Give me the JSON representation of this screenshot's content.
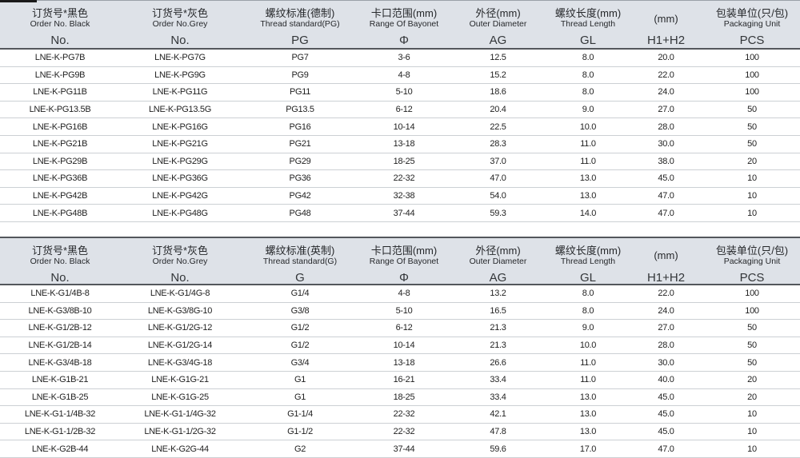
{
  "tables": [
    {
      "name": "pg-thread-table",
      "columns": [
        {
          "slug": "order-no-black",
          "zh": "订货号*黑色",
          "en": "Order No. Black",
          "key": "No."
        },
        {
          "slug": "order-no-grey",
          "zh": "订货号*灰色",
          "en": "Order No.Grey",
          "key": "No."
        },
        {
          "slug": "thread-standard",
          "zh": "螺纹标准(德制)",
          "en": "Thread standard(PG)",
          "key": "PG"
        },
        {
          "slug": "bayonet-range",
          "zh": "卡口范围(mm)",
          "en": "Range Of Bayonet",
          "key": "Φ"
        },
        {
          "slug": "outer-diameter",
          "zh": "外径(mm)",
          "en": "Outer Diameter",
          "key": "AG"
        },
        {
          "slug": "thread-length",
          "zh": "螺纹长度(mm)",
          "en": "Thread Length",
          "key": "GL"
        },
        {
          "slug": "h1h2",
          "zh": "(mm)",
          "en": "",
          "key": "H1+H2"
        },
        {
          "slug": "packaging-unit",
          "zh": "包装单位(只/包)",
          "en": "Packaging Unit",
          "key": "PCS"
        }
      ],
      "rows": [
        [
          "LNE-K-PG7B",
          "LNE-K-PG7G",
          "PG7",
          "3-6",
          "12.5",
          "8.0",
          "20.0",
          "100"
        ],
        [
          "LNE-K-PG9B",
          "LNE-K-PG9G",
          "PG9",
          "4-8",
          "15.2",
          "8.0",
          "22.0",
          "100"
        ],
        [
          "LNE-K-PG11B",
          "LNE-K-PG11G",
          "PG11",
          "5-10",
          "18.6",
          "8.0",
          "24.0",
          "100"
        ],
        [
          "LNE-K-PG13.5B",
          "LNE-K-PG13.5G",
          "PG13.5",
          "6-12",
          "20.4",
          "9.0",
          "27.0",
          "50"
        ],
        [
          "LNE-K-PG16B",
          "LNE-K-PG16G",
          "PG16",
          "10-14",
          "22.5",
          "10.0",
          "28.0",
          "50"
        ],
        [
          "LNE-K-PG21B",
          "LNE-K-PG21G",
          "PG21",
          "13-18",
          "28.3",
          "11.0",
          "30.0",
          "50"
        ],
        [
          "LNE-K-PG29B",
          "LNE-K-PG29G",
          "PG29",
          "18-25",
          "37.0",
          "11.0",
          "38.0",
          "20"
        ],
        [
          "LNE-K-PG36B",
          "LNE-K-PG36G",
          "PG36",
          "22-32",
          "47.0",
          "13.0",
          "45.0",
          "10"
        ],
        [
          "LNE-K-PG42B",
          "LNE-K-PG42G",
          "PG42",
          "32-38",
          "54.0",
          "13.0",
          "47.0",
          "10"
        ],
        [
          "LNE-K-PG48B",
          "LNE-K-PG48G",
          "PG48",
          "37-44",
          "59.3",
          "14.0",
          "47.0",
          "10"
        ]
      ]
    },
    {
      "name": "g-thread-table",
      "columns": [
        {
          "slug": "order-no-black",
          "zh": "订货号*黑色",
          "en": "Order No. Black",
          "key": "No."
        },
        {
          "slug": "order-no-grey",
          "zh": "订货号*灰色",
          "en": "Order No.Grey",
          "key": "No."
        },
        {
          "slug": "thread-standard",
          "zh": "螺纹标准(英制)",
          "en": "Thread standard(G)",
          "key": "G"
        },
        {
          "slug": "bayonet-range",
          "zh": "卡口范围(mm)",
          "en": "Range Of Bayonet",
          "key": "Φ"
        },
        {
          "slug": "outer-diameter",
          "zh": "外径(mm)",
          "en": "Outer Diameter",
          "key": "AG"
        },
        {
          "slug": "thread-length",
          "zh": "螺纹长度(mm)",
          "en": "Thread Length",
          "key": "GL"
        },
        {
          "slug": "h1h2",
          "zh": "(mm)",
          "en": "",
          "key": "H1+H2"
        },
        {
          "slug": "packaging-unit",
          "zh": "包装单位(只/包)",
          "en": "Packaging Unit",
          "key": "PCS"
        }
      ],
      "rows": [
        [
          "LNE-K-G1/4B-8",
          "LNE-K-G1/4G-8",
          "G1/4",
          "4-8",
          "13.2",
          "8.0",
          "22.0",
          "100"
        ],
        [
          "LNE-K-G3/8B-10",
          "LNE-K-G3/8G-10",
          "G3/8",
          "5-10",
          "16.5",
          "8.0",
          "24.0",
          "100"
        ],
        [
          "LNE-K-G1/2B-12",
          "LNE-K-G1/2G-12",
          "G1/2",
          "6-12",
          "21.3",
          "9.0",
          "27.0",
          "50"
        ],
        [
          "LNE-K-G1/2B-14",
          "LNE-K-G1/2G-14",
          "G1/2",
          "10-14",
          "21.3",
          "10.0",
          "28.0",
          "50"
        ],
        [
          "LNE-K-G3/4B-18",
          "LNE-K-G3/4G-18",
          "G3/4",
          "13-18",
          "26.6",
          "11.0",
          "30.0",
          "50"
        ],
        [
          "LNE-K-G1B-21",
          "LNE-K-G1G-21",
          "G1",
          "16-21",
          "33.4",
          "11.0",
          "40.0",
          "20"
        ],
        [
          "LNE-K-G1B-25",
          "LNE-K-G1G-25",
          "G1",
          "18-25",
          "33.4",
          "13.0",
          "45.0",
          "20"
        ],
        [
          "LNE-K-G1-1/4B-32",
          "LNE-K-G1-1/4G-32",
          "G1-1/4",
          "22-32",
          "42.1",
          "13.0",
          "45.0",
          "10"
        ],
        [
          "LNE-K-G1-1/2B-32",
          "LNE-K-G1-1/2G-32",
          "G1-1/2",
          "22-32",
          "47.8",
          "13.0",
          "45.0",
          "10"
        ],
        [
          "LNE-K-G2B-44",
          "LNE-K-G2G-44",
          "G2",
          "37-44",
          "59.6",
          "17.0",
          "47.0",
          "10"
        ]
      ]
    }
  ],
  "colors": {
    "header_bg": "#dee2e8",
    "header_border_dark": "#54575c",
    "row_separator": "#ccd0d4",
    "page_bottom_border": "#8b95a6",
    "accent_bar": "#1a1a1a"
  }
}
